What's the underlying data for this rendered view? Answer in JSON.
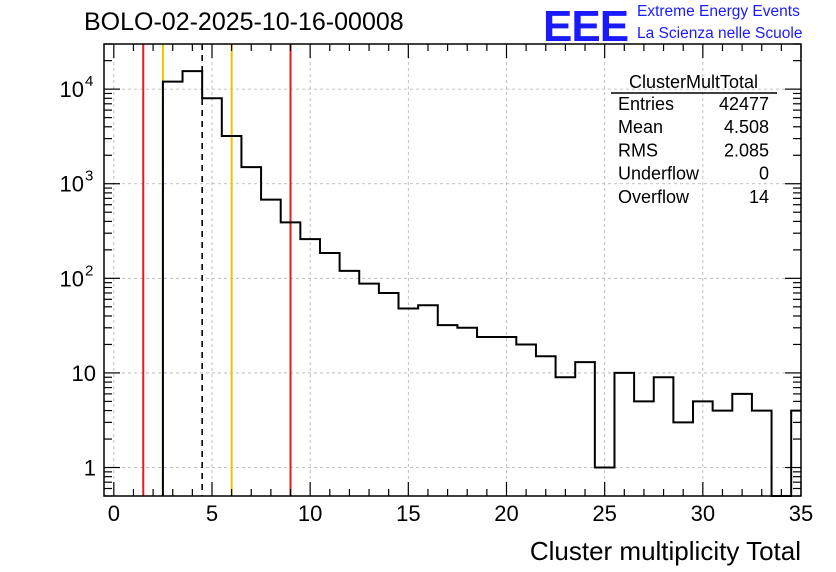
{
  "header": {
    "title": "BOLO-02-2025-10-16-00008",
    "logo_text": "EEE",
    "logo_line1": "Extreme Energy Events",
    "logo_line2": "La Scienza nelle Scuole"
  },
  "colors": {
    "histogram": "#000000",
    "red_cut": "#e21b1b",
    "yellow_cut": "#f2c200",
    "mean_dash": "#000000",
    "logo": "#1a1aff",
    "grid": "#b0b0b0"
  },
  "chart_data": {
    "type": "histogram",
    "title": "BOLO-02-2025-10-16-00008",
    "xlabel": "Cluster multiplicity Total",
    "ylabel": "",
    "xlim": [
      -0.5,
      35
    ],
    "ylim": [
      0.5,
      30000
    ],
    "y_scale": "log",
    "grid": true,
    "x_ticks": [
      0,
      5,
      10,
      15,
      20,
      25,
      30,
      35
    ],
    "x_tick_labels": [
      "0",
      "5",
      "10",
      "15",
      "20",
      "25",
      "30",
      "35"
    ],
    "y_ticks": [
      1,
      10,
      100,
      1000,
      10000
    ],
    "y_tick_labels": [
      {
        "base": "1",
        "exp": ""
      },
      {
        "base": "10",
        "exp": ""
      },
      {
        "base": "10",
        "exp": "2"
      },
      {
        "base": "10",
        "exp": "3"
      },
      {
        "base": "10",
        "exp": "4"
      }
    ],
    "bin_width": 1,
    "bin_low_edges": [
      2.5,
      3.5,
      4.5,
      5.5,
      6.5,
      7.5,
      8.5,
      9.5,
      10.5,
      11.5,
      12.5,
      13.5,
      14.5,
      15.5,
      16.5,
      17.5,
      18.5,
      19.5,
      20.5,
      21.5,
      22.5,
      23.5,
      24.5,
      25.5,
      26.5,
      27.5,
      28.5,
      29.5,
      30.5,
      31.5,
      32.5,
      33.5,
      34.5
    ],
    "values": [
      12000,
      15500,
      8000,
      3200,
      1500,
      680,
      390,
      260,
      185,
      120,
      88,
      70,
      48,
      52,
      32,
      30,
      24,
      24,
      20,
      15,
      9,
      13,
      1,
      10,
      5,
      9,
      3,
      5,
      4,
      6,
      4,
      0,
      4
    ],
    "vertical_lines": [
      {
        "name": "red-cut-low",
        "x": 1.5,
        "color": "red"
      },
      {
        "name": "yellow-cut-low",
        "x": 2.5,
        "color": "yellow"
      },
      {
        "name": "mean-marker",
        "x": 4.5,
        "color": "black-dashed"
      },
      {
        "name": "yellow-cut-high",
        "x": 6.0,
        "color": "yellow"
      },
      {
        "name": "red-cut-high",
        "x": 9.0,
        "color": "red"
      }
    ],
    "stats": {
      "name": "ClusterMultTotal",
      "rows": [
        {
          "label": "Entries",
          "value": "42477"
        },
        {
          "label": "Mean",
          "value": "4.508"
        },
        {
          "label": "RMS",
          "value": "2.085"
        },
        {
          "label": "Underflow",
          "value": "0"
        },
        {
          "label": "Overflow",
          "value": "14"
        }
      ]
    }
  }
}
